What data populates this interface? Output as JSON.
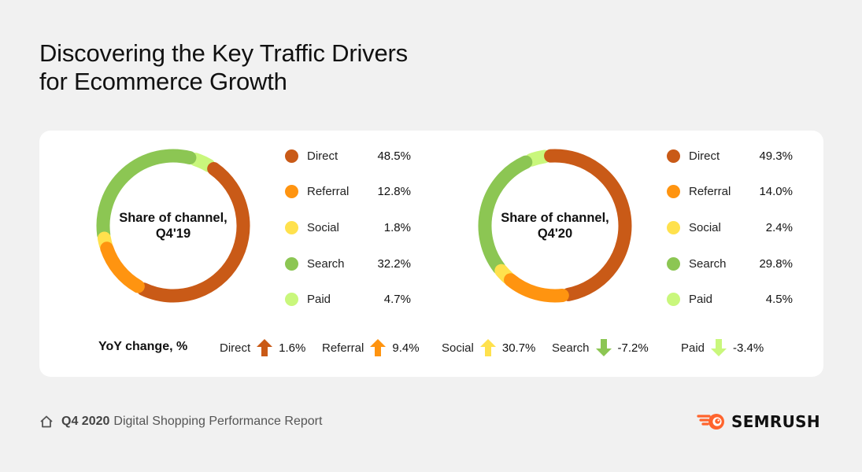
{
  "title": {
    "line1": "Discovering the Key Traffic Drivers",
    "line2": "for Ecommerce Growth"
  },
  "colors": {
    "Direct": "#c95a17",
    "Referral": "#ff9410",
    "Social": "#ffe14d",
    "Search": "#8cc653",
    "Paid": "#c9f77c",
    "background": "#f1f1f1",
    "card": "#ffffff",
    "brand": "#ff642d"
  },
  "chart_data": [
    {
      "type": "pie",
      "variant": "donut",
      "title": "Share of channel, Q4'19",
      "center_label": [
        "Share of channel,",
        "Q4'19"
      ],
      "categories": [
        "Direct",
        "Referral",
        "Social",
        "Search",
        "Paid"
      ],
      "values": [
        48.5,
        12.8,
        1.8,
        32.2,
        4.7
      ],
      "value_labels": [
        "48.5%",
        "12.8%",
        "1.8%",
        "32.2%",
        "4.7%"
      ],
      "unit": "%",
      "legend": "right"
    },
    {
      "type": "pie",
      "variant": "donut",
      "title": "Share of channel, Q4'20",
      "center_label": [
        "Share of channel,",
        "Q4'20"
      ],
      "categories": [
        "Direct",
        "Referral",
        "Social",
        "Search",
        "Paid"
      ],
      "values": [
        49.3,
        14.0,
        2.4,
        29.8,
        4.5
      ],
      "value_labels": [
        "49.3%",
        "14.0%",
        "2.4%",
        "29.8%",
        "4.5%"
      ],
      "unit": "%",
      "legend": "right"
    }
  ],
  "yoy": {
    "title": "YoY change, %",
    "items": [
      {
        "name": "Direct",
        "value": "1.6%",
        "direction": "up",
        "color_key": "Direct"
      },
      {
        "name": "Referral",
        "value": "9.4%",
        "direction": "up",
        "color_key": "Referral"
      },
      {
        "name": "Social",
        "value": "30.7%",
        "direction": "up",
        "color_key": "Social"
      },
      {
        "name": "Search",
        "value": "-7.2%",
        "direction": "down",
        "color_key": "Search"
      },
      {
        "name": "Paid",
        "value": "-3.4%",
        "direction": "down",
        "color_key": "Paid"
      }
    ]
  },
  "footer": {
    "icon": "home-icon",
    "bold": "Q4 2020",
    "text": "Digital Shopping Performance Report"
  },
  "brand": {
    "icon": "semrush-fireball-icon",
    "name": "SEMRUSH"
  }
}
